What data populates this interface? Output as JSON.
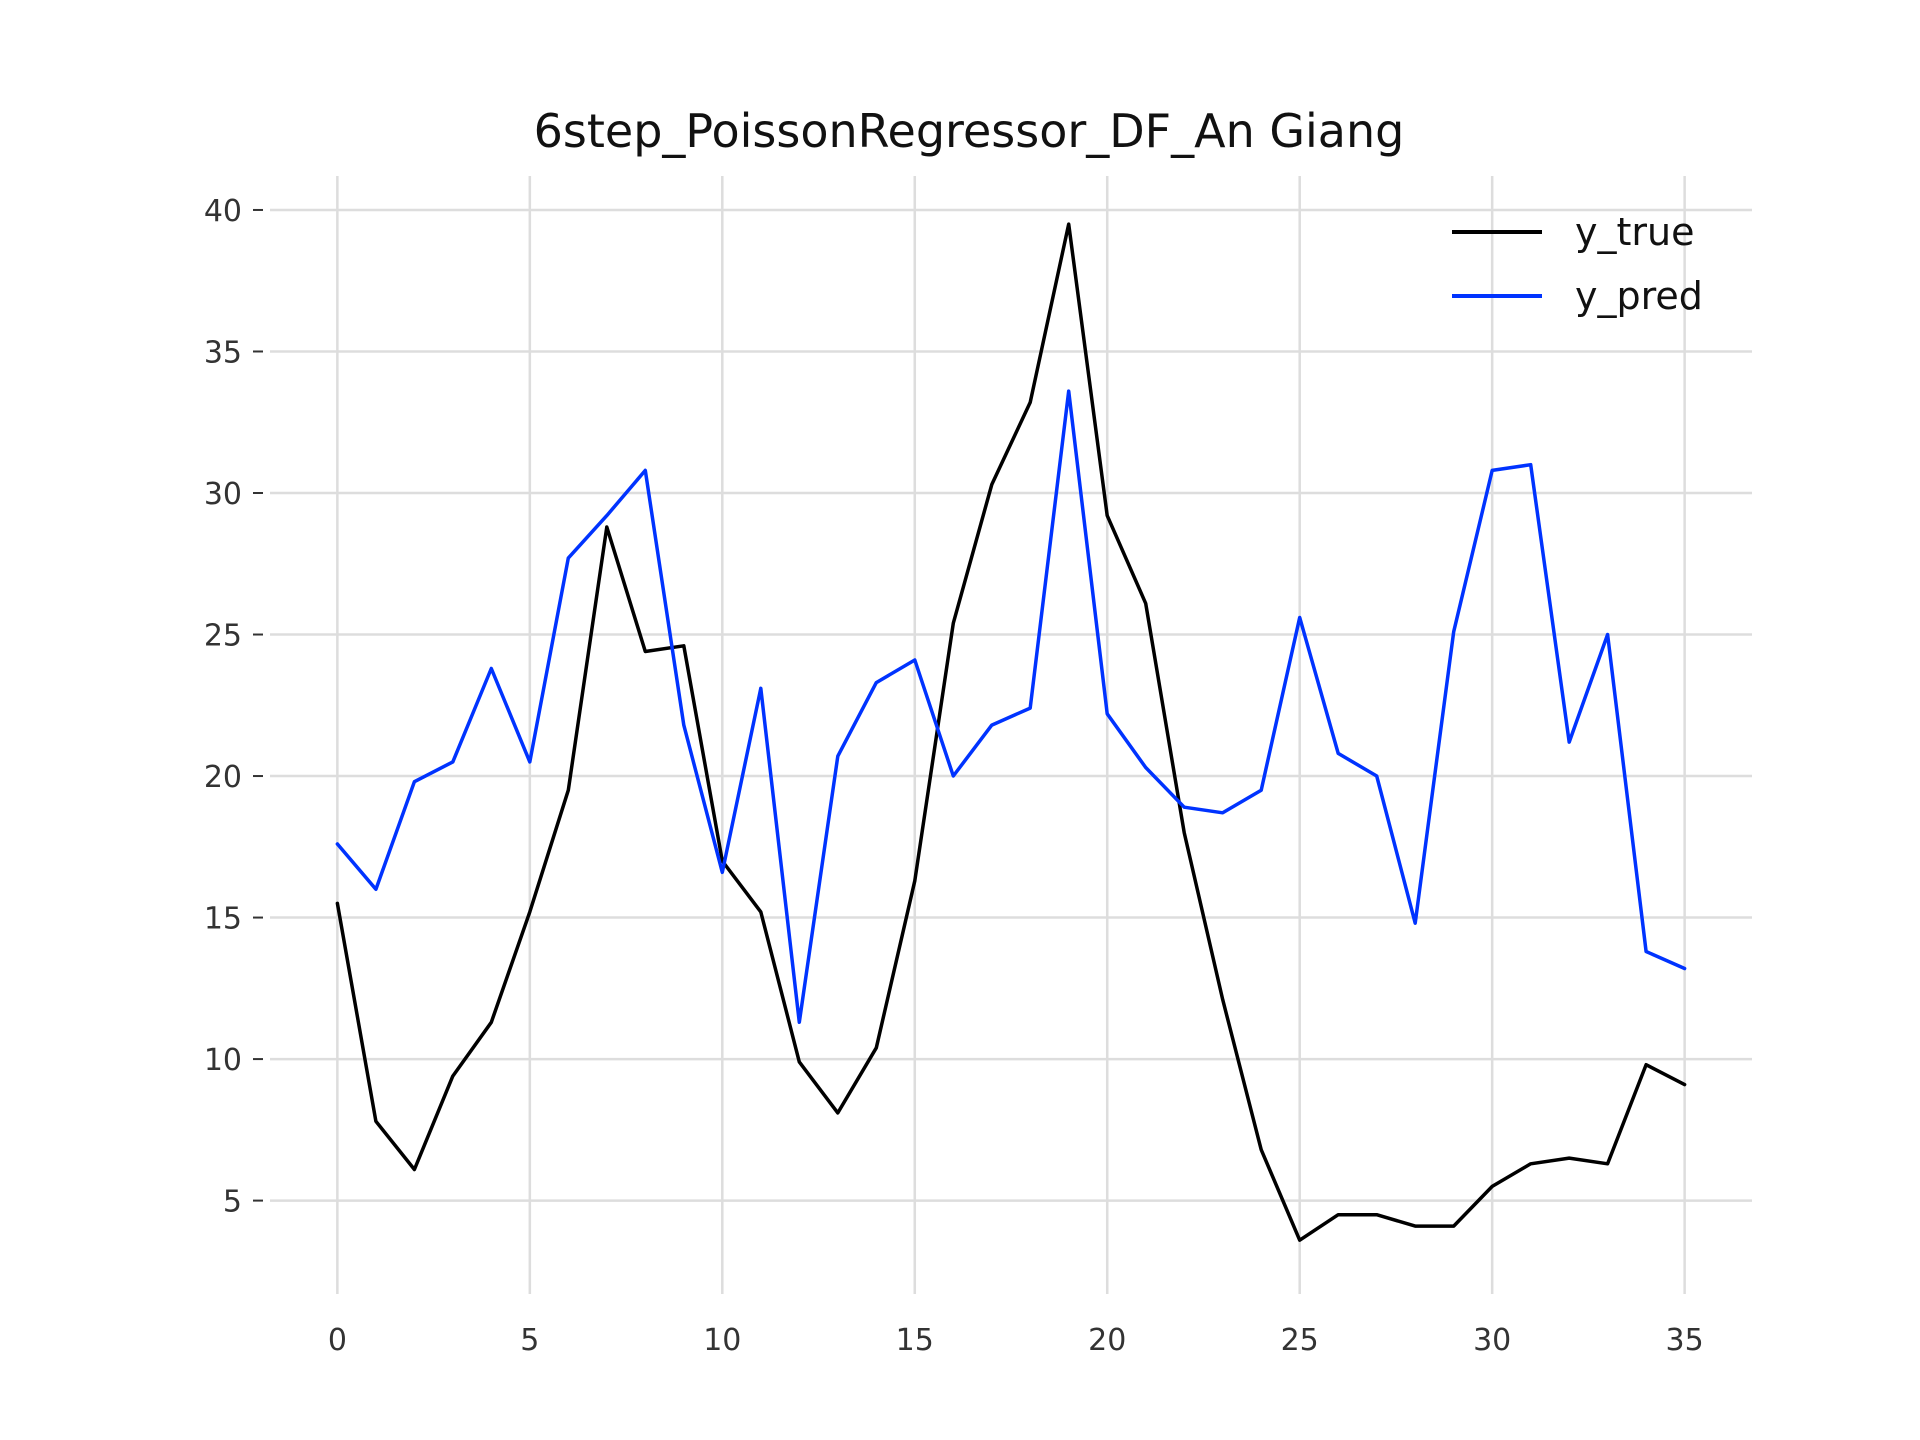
{
  "chart_data": {
    "type": "line",
    "title": "6step_PoissonRegressor_DF_An Giang",
    "xlabel": "",
    "ylabel": "",
    "xlim": [
      -1.75,
      36.75
    ],
    "ylim": [
      1.7,
      41.2
    ],
    "xticks": [
      0,
      5,
      10,
      15,
      20,
      25,
      30,
      35
    ],
    "yticks": [
      5,
      10,
      15,
      20,
      25,
      30,
      35,
      40
    ],
    "grid": true,
    "legend_position": "top-right",
    "x": [
      0,
      1,
      2,
      3,
      4,
      5,
      6,
      7,
      8,
      9,
      10,
      11,
      12,
      13,
      14,
      15,
      16,
      17,
      18,
      19,
      20,
      21,
      22,
      23,
      24,
      25,
      26,
      27,
      28,
      29,
      30,
      31,
      32,
      33,
      34,
      35
    ],
    "series": [
      {
        "name": "y_true",
        "color": "#000000",
        "values": [
          15.5,
          7.8,
          6.1,
          9.4,
          11.3,
          15.2,
          19.5,
          28.8,
          24.4,
          24.6,
          17.0,
          15.2,
          9.9,
          8.1,
          10.4,
          16.3,
          25.4,
          30.3,
          33.2,
          39.5,
          29.2,
          26.1,
          18.0,
          12.1,
          6.8,
          3.6,
          4.5,
          4.5,
          4.1,
          4.1,
          5.5,
          6.3,
          6.5,
          6.3,
          9.8,
          9.1
        ]
      },
      {
        "name": "y_pred",
        "color": "#0033ff",
        "values": [
          17.6,
          16.0,
          19.8,
          20.5,
          23.8,
          20.5,
          27.7,
          29.2,
          30.8,
          21.8,
          16.6,
          23.1,
          11.3,
          20.7,
          23.3,
          24.1,
          20.0,
          21.8,
          22.4,
          33.6,
          22.2,
          20.3,
          18.9,
          18.7,
          19.5,
          25.6,
          20.8,
          20.0,
          14.8,
          25.1,
          30.8,
          31.0,
          21.2,
          25.0,
          13.8,
          13.2
        ]
      }
    ]
  }
}
